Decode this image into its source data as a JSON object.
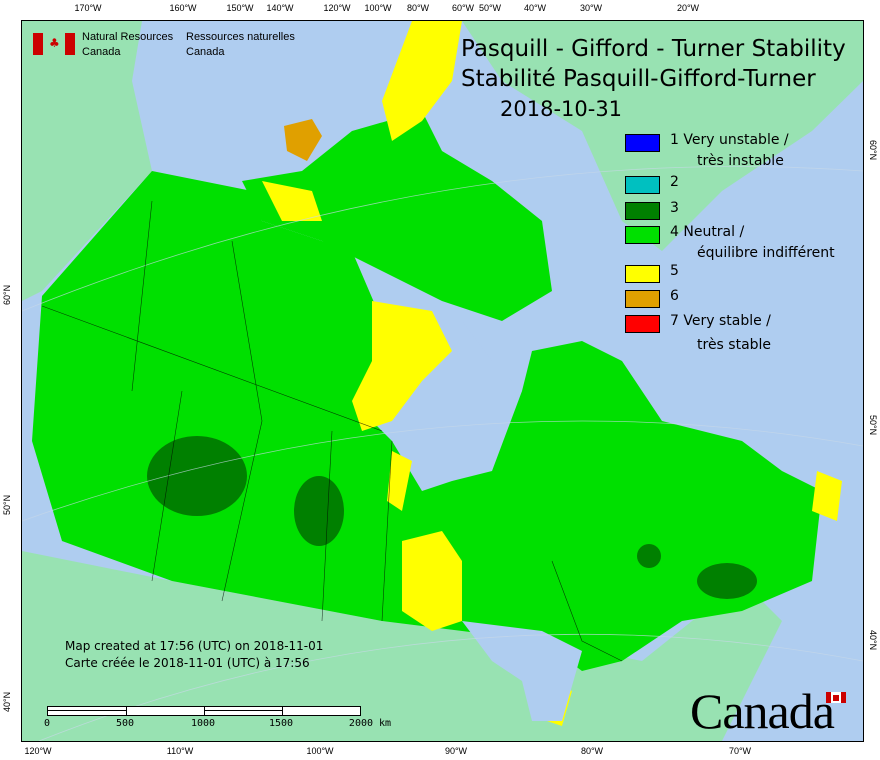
{
  "header": {
    "org_en": [
      "Natural Resources",
      "Canada"
    ],
    "org_fr": [
      "Ressources naturelles",
      "Canada"
    ],
    "title_en": "Pasquill - Gifford - Turner Stability",
    "title_fr": "Stabilité Pasquill-Gifford-Turner",
    "date": "2018-10-31"
  },
  "legend": [
    {
      "label": "1 Very unstable /",
      "label2": "très instable",
      "color": "#0000ff"
    },
    {
      "label": "2",
      "color": "#00c0c0"
    },
    {
      "label": "3",
      "color": "#008000"
    },
    {
      "label": "4 Neutral /",
      "label2": "équilibre indifférent",
      "color": "#00e000"
    },
    {
      "label": "5",
      "color": "#ffff00"
    },
    {
      "label": "6",
      "color": "#e0a000"
    },
    {
      "label": "7 Very stable /",
      "label2": "très stable",
      "color": "#ff0000"
    }
  ],
  "footer": {
    "created_en": "Map created at 17:56 (UTC) on 2018-11-01",
    "created_fr": "Carte créée le 2018-11-01 (UTC) à 17:56",
    "scale_labels": [
      "0",
      "500",
      "1000",
      "1500",
      "2000  km"
    ],
    "wordmark": "Canada"
  },
  "axes": {
    "top": [
      "170°W",
      "160°W",
      "150°W",
      "140°W",
      "120°W",
      "100°W",
      "80°W",
      "60°W",
      "50°W",
      "40°W",
      "30°W",
      "20°W"
    ],
    "bottom": [
      "120°W",
      "110°W",
      "100°W",
      "90°W",
      "80°W",
      "70°W"
    ],
    "left": [
      "60°N",
      "50°N",
      "40°N"
    ],
    "right": [
      "60°N",
      "50°N",
      "40°N"
    ]
  },
  "colors": {
    "ocean": "#afcdf0",
    "other_land": "#98e2b2",
    "canada_neutral": "#00e000",
    "flag_red": "#cc0000"
  }
}
